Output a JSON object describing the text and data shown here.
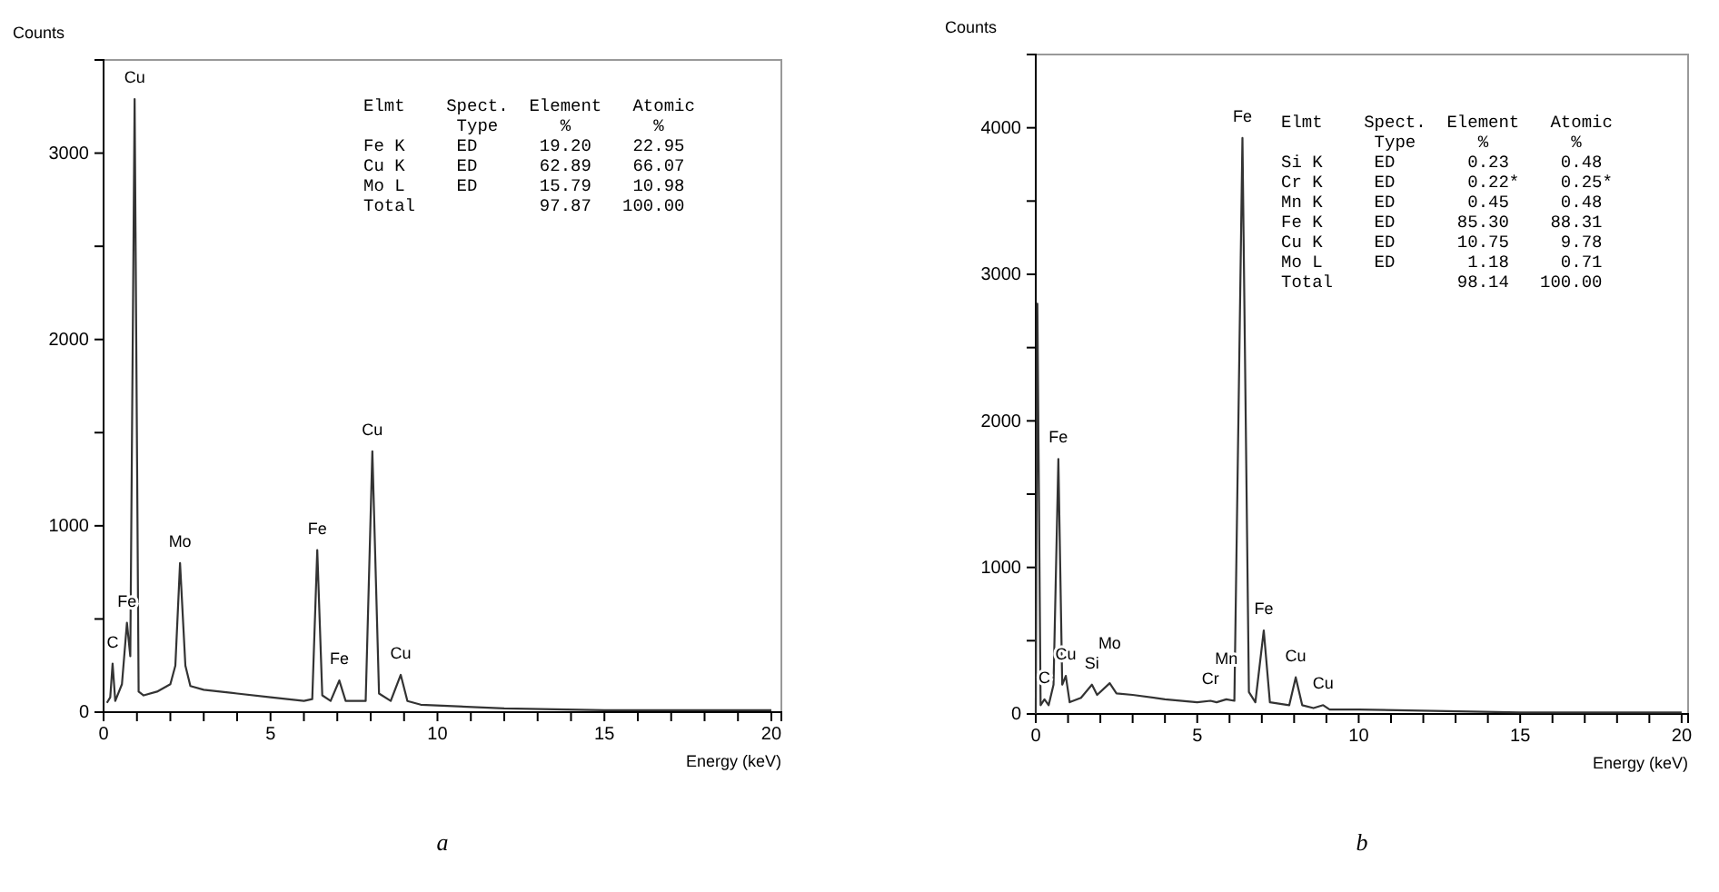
{
  "chart_data": [
    {
      "type": "line",
      "title": "a",
      "xlabel": "Energy (keV)",
      "ylabel": "Counts",
      "color": "#333333",
      "xlim": [
        0,
        20.3
      ],
      "ylim": [
        0,
        3500
      ],
      "xticks": [
        0,
        {
          "value": 1,
          "label": null
        },
        {
          "value": 2,
          "label": null
        },
        {
          "value": 3,
          "label": null
        },
        {
          "value": 4,
          "label": null
        },
        5,
        {
          "value": 6,
          "label": null
        },
        {
          "value": 7,
          "label": null
        },
        {
          "value": 8,
          "label": null
        },
        {
          "value": 9,
          "label": null
        },
        10,
        {
          "value": 11,
          "label": null
        },
        {
          "value": 12,
          "label": null
        },
        {
          "value": 13,
          "label": null
        },
        {
          "value": 14,
          "label": null
        },
        15,
        {
          "value": 16,
          "label": null
        },
        {
          "value": 17,
          "label": null
        },
        {
          "value": 18,
          "label": null
        },
        {
          "value": 19,
          "label": null
        },
        20
      ],
      "yticks": [
        0,
        {
          "value": 500,
          "label": null
        },
        1000,
        {
          "value": 1500,
          "label": null
        },
        2000,
        {
          "value": 2500,
          "label": null
        },
        3000
      ],
      "x": [
        0.1,
        0.2,
        0.27,
        0.35,
        0.55,
        0.7,
        0.8,
        0.93,
        1.05,
        1.2,
        1.6,
        2.0,
        2.15,
        2.29,
        2.45,
        2.6,
        3,
        4,
        5,
        6,
        6.25,
        6.4,
        6.55,
        6.8,
        7.06,
        7.25,
        7.85,
        8.05,
        8.25,
        8.6,
        8.9,
        9.1,
        9.5,
        12,
        15,
        18,
        20
      ],
      "values": [
        50,
        80,
        260,
        60,
        150,
        480,
        300,
        3290,
        110,
        90,
        110,
        150,
        250,
        800,
        250,
        140,
        120,
        100,
        80,
        60,
        70,
        870,
        90,
        60,
        170,
        60,
        60,
        1400,
        100,
        60,
        200,
        60,
        40,
        20,
        10,
        10,
        10
      ],
      "annotations": [
        {
          "text": "Cu",
          "x": 0.93,
          "y": 3290
        },
        {
          "text": "C",
          "x": 0.27,
          "y": 260
        },
        {
          "text": "Fe",
          "x": 0.7,
          "y": 480
        },
        {
          "text": "Mo",
          "x": 2.29,
          "y": 800
        },
        {
          "text": "Fe",
          "x": 6.4,
          "y": 870
        },
        {
          "text": "Fe",
          "x": 7.06,
          "y": 170
        },
        {
          "text": "Cu",
          "x": 8.05,
          "y": 1400
        },
        {
          "text": "Cu",
          "x": 8.9,
          "y": 200
        },
        "Elmt    Spect.  Element   Atomic",
        "         Type      %        %",
        "Fe K     ED      19.20    22.95",
        "Cu K     ED      62.89    66.07",
        "Mo L     ED      15.79    10.98",
        "Total            97.87   100.00"
      ]
    },
    {
      "type": "line",
      "title": "b",
      "xlabel": "Energy (keV)",
      "ylabel": "Counts",
      "color": "#333333",
      "xlim": [
        0,
        20.2
      ],
      "ylim": [
        0,
        4500
      ],
      "xticks": [
        0,
        {
          "value": 1,
          "label": null
        },
        {
          "value": 2,
          "label": null
        },
        {
          "value": 3,
          "label": null
        },
        {
          "value": 4,
          "label": null
        },
        5,
        {
          "value": 6,
          "label": null
        },
        {
          "value": 7,
          "label": null
        },
        {
          "value": 8,
          "label": null
        },
        {
          "value": 9,
          "label": null
        },
        10,
        {
          "value": 11,
          "label": null
        },
        {
          "value": 12,
          "label": null
        },
        {
          "value": 13,
          "label": null
        },
        {
          "value": 14,
          "label": null
        },
        15,
        {
          "value": 16,
          "label": null
        },
        {
          "value": 17,
          "label": null
        },
        {
          "value": 18,
          "label": null
        },
        {
          "value": 19,
          "label": null
        },
        20
      ],
      "yticks": [
        0,
        {
          "value": 500,
          "label": null
        },
        1000,
        {
          "value": 1500,
          "label": null
        },
        2000,
        {
          "value": 2500,
          "label": null
        },
        3000,
        {
          "value": 3500,
          "label": null
        },
        4000
      ],
      "x": [
        0,
        0.05,
        0.15,
        0.27,
        0.4,
        0.55,
        0.7,
        0.82,
        0.93,
        1.05,
        1.4,
        1.74,
        1.9,
        2.29,
        2.5,
        3,
        4,
        5,
        5.41,
        5.6,
        5.9,
        6.15,
        6.4,
        6.6,
        6.8,
        7.06,
        7.25,
        7.85,
        8.05,
        8.25,
        8.6,
        8.9,
        9.1,
        10,
        15,
        20
      ],
      "values": [
        0,
        2800,
        60,
        100,
        60,
        200,
        1740,
        200,
        260,
        80,
        110,
        200,
        130,
        210,
        140,
        130,
        100,
        80,
        90,
        80,
        100,
        90,
        3930,
        150,
        80,
        570,
        80,
        60,
        250,
        60,
        40,
        60,
        30,
        30,
        10,
        10
      ],
      "annotations": [
        {
          "text": "C",
          "x": 0.27,
          "y": 100
        },
        {
          "text": "Fe",
          "x": 0.7,
          "y": 1740
        },
        {
          "text": "Cu",
          "x": 0.93,
          "y": 260
        },
        {
          "text": "Si",
          "x": 1.74,
          "y": 200
        },
        {
          "text": "Mo",
          "x": 2.29,
          "y": 210
        },
        {
          "text": "Cr",
          "x": 5.41,
          "y": 90
        },
        {
          "text": "Mn",
          "x": 5.9,
          "y": 100
        },
        {
          "text": "Fe",
          "x": 6.4,
          "y": 3930
        },
        {
          "text": "Fe",
          "x": 7.06,
          "y": 570
        },
        {
          "text": "Cu",
          "x": 8.05,
          "y": 250
        },
        {
          "text": "Cu",
          "x": 8.9,
          "y": 60
        },
        "Elmt    Spect.  Element   Atomic",
        "         Type      %        %",
        "Si K     ED       0.23     0.48",
        "Cr K     ED       0.22*    0.25*",
        "Mn K     ED       0.45     0.48",
        "Fe K     ED      85.30    88.31",
        "Cu K     ED      10.75     9.78",
        "Mo L     ED       1.18     0.71",
        "Total            98.14   100.00"
      ]
    }
  ]
}
